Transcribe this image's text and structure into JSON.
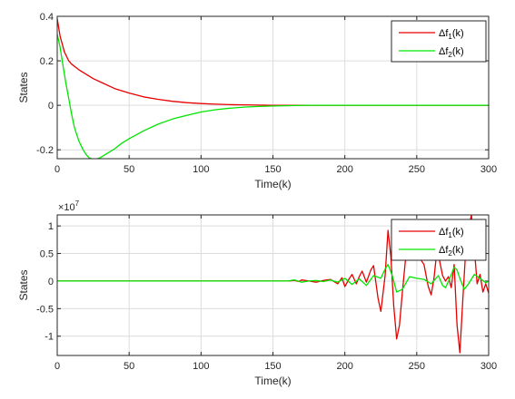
{
  "chart_data": [
    {
      "type": "line",
      "xlabel": "Time(k)",
      "ylabel": "States",
      "xlim": [
        0,
        300
      ],
      "ylim": [
        -0.24,
        0.4
      ],
      "xticks": [
        "0",
        "50",
        "100",
        "150",
        "200",
        "250",
        "300"
      ],
      "yticks": [
        "-0.2",
        "0",
        "0.2",
        "0.4"
      ],
      "grid": true,
      "legend": {
        "placement": "top-right",
        "entries": [
          {
            "prefix": "Δf",
            "sub": "1",
            "suffix": "(k)"
          },
          {
            "prefix": "Δf",
            "sub": "2",
            "suffix": "(k)"
          }
        ]
      },
      "series": [
        {
          "name": "Δf1(k)",
          "color": "#e60000",
          "x": [
            0,
            2,
            5,
            8,
            10,
            15,
            20,
            25,
            30,
            40,
            50,
            60,
            70,
            80,
            90,
            100,
            110,
            120,
            130,
            140,
            150,
            175,
            200,
            250,
            300
          ],
          "y": [
            0.39,
            0.31,
            0.24,
            0.2,
            0.185,
            0.16,
            0.14,
            0.12,
            0.105,
            0.075,
            0.055,
            0.038,
            0.027,
            0.018,
            0.012,
            0.008,
            0.005,
            0.003,
            0.002,
            0.001,
            0.0,
            0.0,
            0.0,
            0.0,
            0.0
          ]
        },
        {
          "name": "Δf2(k)",
          "color": "#00e600",
          "x": [
            0,
            2,
            4,
            6,
            8,
            10,
            12,
            15,
            18,
            20,
            22,
            25,
            28,
            30,
            35,
            40,
            45,
            50,
            60,
            70,
            80,
            90,
            100,
            110,
            120,
            130,
            140,
            150,
            175,
            200,
            250,
            300
          ],
          "y": [
            0.32,
            0.26,
            0.18,
            0.1,
            0.03,
            -0.04,
            -0.1,
            -0.16,
            -0.2,
            -0.22,
            -0.235,
            -0.243,
            -0.24,
            -0.235,
            -0.215,
            -0.195,
            -0.17,
            -0.15,
            -0.115,
            -0.085,
            -0.062,
            -0.045,
            -0.03,
            -0.02,
            -0.013,
            -0.008,
            -0.005,
            -0.003,
            0.0,
            0.0,
            0.0,
            0.0
          ]
        }
      ]
    },
    {
      "type": "line",
      "xlabel": "Time(k)",
      "ylabel": "States",
      "exponent_label": {
        "base": "×10",
        "power": "7"
      },
      "xlim": [
        0,
        300
      ],
      "ylim": [
        -1.35,
        1.2
      ],
      "xticks": [
        "0",
        "50",
        "100",
        "150",
        "200",
        "250",
        "300"
      ],
      "yticks": [
        "-1",
        "-0.5",
        "0",
        "0.5",
        "1"
      ],
      "grid": true,
      "legend": {
        "placement": "top-right",
        "entries": [
          {
            "prefix": "Δf",
            "sub": "1",
            "suffix": "(k)"
          },
          {
            "prefix": "Δf",
            "sub": "2",
            "suffix": "(k)"
          }
        ]
      },
      "series": [
        {
          "name": "Δf1(k)",
          "color": "#e60000",
          "x": [
            0,
            160,
            165,
            168,
            170,
            175,
            180,
            185,
            190,
            195,
            198,
            200,
            203,
            205,
            208,
            210,
            212,
            215,
            218,
            220,
            223,
            225,
            228,
            230,
            232,
            234,
            236,
            238,
            240,
            242,
            245,
            248,
            250,
            253,
            255,
            258,
            260,
            262,
            264,
            266,
            268,
            270,
            272,
            274,
            276,
            278,
            280,
            282,
            284,
            286,
            288,
            290,
            292,
            294,
            296,
            298,
            300
          ],
          "y": [
            0,
            0,
            0.01,
            -0.01,
            0.02,
            0.0,
            -0.02,
            0.01,
            0.03,
            -0.05,
            0.06,
            -0.1,
            0.04,
            0.12,
            -0.05,
            0.08,
            0.18,
            -0.02,
            0.2,
            0.28,
            -0.3,
            -0.55,
            0.1,
            0.92,
            0.45,
            -0.45,
            -1.05,
            -0.8,
            -0.2,
            0.35,
            0.6,
            0.55,
            0.5,
            0.38,
            0.3,
            -0.1,
            -0.25,
            0.05,
            0.55,
            0.35,
            0.1,
            0.0,
            0.08,
            -0.12,
            0.3,
            -0.8,
            -1.3,
            -0.35,
            0.55,
            0.95,
            1.2,
            0.6,
            -0.05,
            0.12,
            -0.2,
            -0.05,
            -0.22
          ]
        },
        {
          "name": "Δf2(k)",
          "color": "#00e600",
          "x": [
            0,
            160,
            165,
            170,
            175,
            180,
            185,
            190,
            195,
            200,
            205,
            210,
            215,
            220,
            225,
            228,
            230,
            233,
            236,
            240,
            245,
            250,
            255,
            260,
            265,
            268,
            270,
            273,
            276,
            278,
            280,
            283,
            286,
            290,
            294,
            298,
            300
          ],
          "y": [
            0,
            0,
            0.02,
            -0.02,
            0.0,
            0.01,
            -0.01,
            0.02,
            -0.02,
            0.05,
            -0.06,
            0.04,
            -0.08,
            0.1,
            0.05,
            0.22,
            0.3,
            0.1,
            -0.2,
            -0.15,
            0.08,
            0.05,
            0.03,
            -0.05,
            0.1,
            -0.08,
            -0.12,
            0.05,
            0.25,
            0.2,
            0.05,
            -0.15,
            -0.05,
            0.12,
            0.05,
            -0.03,
            0.0
          ]
        }
      ]
    }
  ]
}
